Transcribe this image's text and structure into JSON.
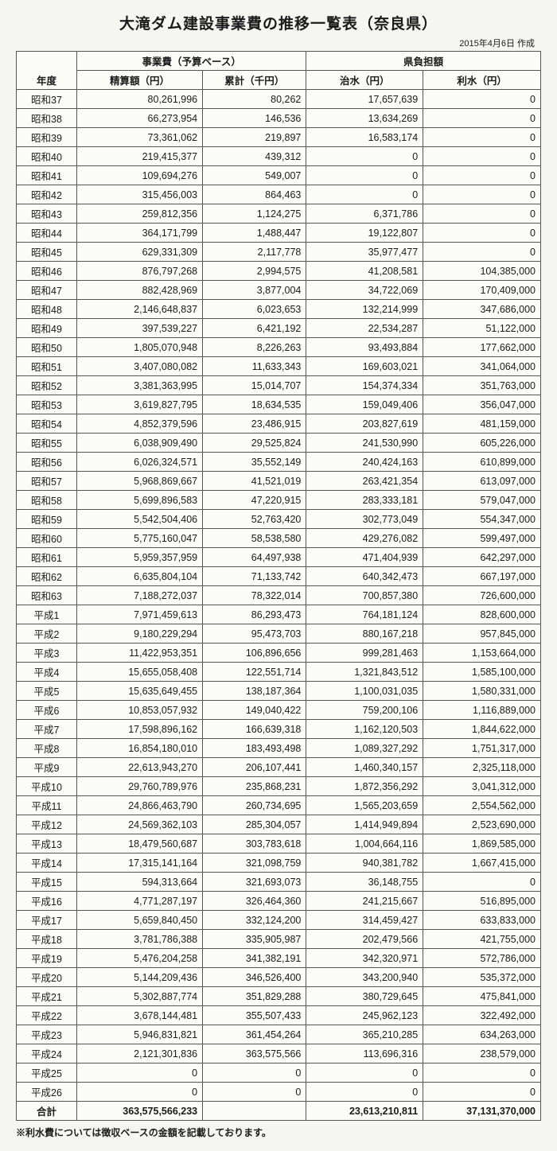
{
  "title": "大滝ダム建設事業費の推移一覧表（奈良県）",
  "date_note": "2015年4月6日 作成",
  "header": {
    "group1": "事業費（予算ベース）",
    "group2": "県負担額",
    "year": "年度",
    "col1": "精算額（円）",
    "col2": "累計（千円）",
    "col3": "治水（円）",
    "col4": "利水（円）"
  },
  "rows": [
    {
      "y": "昭和37",
      "a": "80,261,996",
      "b": "80,262",
      "c": "17,657,639",
      "d": "0"
    },
    {
      "y": "昭和38",
      "a": "66,273,954",
      "b": "146,536",
      "c": "13,634,269",
      "d": "0"
    },
    {
      "y": "昭和39",
      "a": "73,361,062",
      "b": "219,897",
      "c": "16,583,174",
      "d": "0"
    },
    {
      "y": "昭和40",
      "a": "219,415,377",
      "b": "439,312",
      "c": "0",
      "d": "0"
    },
    {
      "y": "昭和41",
      "a": "109,694,276",
      "b": "549,007",
      "c": "0",
      "d": "0"
    },
    {
      "y": "昭和42",
      "a": "315,456,003",
      "b": "864,463",
      "c": "0",
      "d": "0"
    },
    {
      "y": "昭和43",
      "a": "259,812,356",
      "b": "1,124,275",
      "c": "6,371,786",
      "d": "0"
    },
    {
      "y": "昭和44",
      "a": "364,171,799",
      "b": "1,488,447",
      "c": "19,122,807",
      "d": "0"
    },
    {
      "y": "昭和45",
      "a": "629,331,309",
      "b": "2,117,778",
      "c": "35,977,477",
      "d": "0"
    },
    {
      "y": "昭和46",
      "a": "876,797,268",
      "b": "2,994,575",
      "c": "41,208,581",
      "d": "104,385,000"
    },
    {
      "y": "昭和47",
      "a": "882,428,969",
      "b": "3,877,004",
      "c": "34,722,069",
      "d": "170,409,000"
    },
    {
      "y": "昭和48",
      "a": "2,146,648,837",
      "b": "6,023,653",
      "c": "132,214,999",
      "d": "347,686,000"
    },
    {
      "y": "昭和49",
      "a": "397,539,227",
      "b": "6,421,192",
      "c": "22,534,287",
      "d": "51,122,000"
    },
    {
      "y": "昭和50",
      "a": "1,805,070,948",
      "b": "8,226,263",
      "c": "93,493,884",
      "d": "177,662,000"
    },
    {
      "y": "昭和51",
      "a": "3,407,080,082",
      "b": "11,633,343",
      "c": "169,603,021",
      "d": "341,064,000"
    },
    {
      "y": "昭和52",
      "a": "3,381,363,995",
      "b": "15,014,707",
      "c": "154,374,334",
      "d": "351,763,000"
    },
    {
      "y": "昭和53",
      "a": "3,619,827,795",
      "b": "18,634,535",
      "c": "159,049,406",
      "d": "356,047,000"
    },
    {
      "y": "昭和54",
      "a": "4,852,379,596",
      "b": "23,486,915",
      "c": "203,827,619",
      "d": "481,159,000"
    },
    {
      "y": "昭和55",
      "a": "6,038,909,490",
      "b": "29,525,824",
      "c": "241,530,990",
      "d": "605,226,000"
    },
    {
      "y": "昭和56",
      "a": "6,026,324,571",
      "b": "35,552,149",
      "c": "240,424,163",
      "d": "610,899,000"
    },
    {
      "y": "昭和57",
      "a": "5,968,869,667",
      "b": "41,521,019",
      "c": "263,421,354",
      "d": "613,097,000"
    },
    {
      "y": "昭和58",
      "a": "5,699,896,583",
      "b": "47,220,915",
      "c": "283,333,181",
      "d": "579,047,000"
    },
    {
      "y": "昭和59",
      "a": "5,542,504,406",
      "b": "52,763,420",
      "c": "302,773,049",
      "d": "554,347,000"
    },
    {
      "y": "昭和60",
      "a": "5,775,160,047",
      "b": "58,538,580",
      "c": "429,276,082",
      "d": "599,497,000"
    },
    {
      "y": "昭和61",
      "a": "5,959,357,959",
      "b": "64,497,938",
      "c": "471,404,939",
      "d": "642,297,000"
    },
    {
      "y": "昭和62",
      "a": "6,635,804,104",
      "b": "71,133,742",
      "c": "640,342,473",
      "d": "667,197,000"
    },
    {
      "y": "昭和63",
      "a": "7,188,272,037",
      "b": "78,322,014",
      "c": "700,857,380",
      "d": "726,600,000"
    },
    {
      "y": "平成1",
      "a": "7,971,459,613",
      "b": "86,293,473",
      "c": "764,181,124",
      "d": "828,600,000"
    },
    {
      "y": "平成2",
      "a": "9,180,229,294",
      "b": "95,473,703",
      "c": "880,167,218",
      "d": "957,845,000"
    },
    {
      "y": "平成3",
      "a": "11,422,953,351",
      "b": "106,896,656",
      "c": "999,281,463",
      "d": "1,153,664,000"
    },
    {
      "y": "平成4",
      "a": "15,655,058,408",
      "b": "122,551,714",
      "c": "1,321,843,512",
      "d": "1,585,100,000"
    },
    {
      "y": "平成5",
      "a": "15,635,649,455",
      "b": "138,187,364",
      "c": "1,100,031,035",
      "d": "1,580,331,000"
    },
    {
      "y": "平成6",
      "a": "10,853,057,932",
      "b": "149,040,422",
      "c": "759,200,106",
      "d": "1,116,889,000"
    },
    {
      "y": "平成7",
      "a": "17,598,896,162",
      "b": "166,639,318",
      "c": "1,162,120,503",
      "d": "1,844,622,000"
    },
    {
      "y": "平成8",
      "a": "16,854,180,010",
      "b": "183,493,498",
      "c": "1,089,327,292",
      "d": "1,751,317,000"
    },
    {
      "y": "平成9",
      "a": "22,613,943,270",
      "b": "206,107,441",
      "c": "1,460,340,157",
      "d": "2,325,118,000"
    },
    {
      "y": "平成10",
      "a": "29,760,789,976",
      "b": "235,868,231",
      "c": "1,872,356,292",
      "d": "3,041,312,000"
    },
    {
      "y": "平成11",
      "a": "24,866,463,790",
      "b": "260,734,695",
      "c": "1,565,203,659",
      "d": "2,554,562,000"
    },
    {
      "y": "平成12",
      "a": "24,569,362,103",
      "b": "285,304,057",
      "c": "1,414,949,894",
      "d": "2,523,690,000"
    },
    {
      "y": "平成13",
      "a": "18,479,560,687",
      "b": "303,783,618",
      "c": "1,004,664,116",
      "d": "1,869,585,000"
    },
    {
      "y": "平成14",
      "a": "17,315,141,164",
      "b": "321,098,759",
      "c": "940,381,782",
      "d": "1,667,415,000"
    },
    {
      "y": "平成15",
      "a": "594,313,664",
      "b": "321,693,073",
      "c": "36,148,755",
      "d": "0"
    },
    {
      "y": "平成16",
      "a": "4,771,287,197",
      "b": "326,464,360",
      "c": "241,215,667",
      "d": "516,895,000"
    },
    {
      "y": "平成17",
      "a": "5,659,840,450",
      "b": "332,124,200",
      "c": "314,459,427",
      "d": "633,833,000"
    },
    {
      "y": "平成18",
      "a": "3,781,786,388",
      "b": "335,905,987",
      "c": "202,479,566",
      "d": "421,755,000"
    },
    {
      "y": "平成19",
      "a": "5,476,204,258",
      "b": "341,382,191",
      "c": "342,320,971",
      "d": "572,786,000"
    },
    {
      "y": "平成20",
      "a": "5,144,209,436",
      "b": "346,526,400",
      "c": "343,200,940",
      "d": "535,372,000"
    },
    {
      "y": "平成21",
      "a": "5,302,887,774",
      "b": "351,829,288",
      "c": "380,729,645",
      "d": "475,841,000"
    },
    {
      "y": "平成22",
      "a": "3,678,144,481",
      "b": "355,507,433",
      "c": "245,962,123",
      "d": "322,492,000"
    },
    {
      "y": "平成23",
      "a": "5,946,831,821",
      "b": "361,454,264",
      "c": "365,210,285",
      "d": "634,263,000"
    },
    {
      "y": "平成24",
      "a": "2,121,301,836",
      "b": "363,575,566",
      "c": "113,696,316",
      "d": "238,579,000"
    },
    {
      "y": "平成25",
      "a": "0",
      "b": "0",
      "c": "0",
      "d": "0"
    },
    {
      "y": "平成26",
      "a": "0",
      "b": "0",
      "c": "0",
      "d": "0"
    }
  ],
  "total": {
    "y": "合計",
    "a": "363,575,566,233",
    "b": "",
    "c": "23,613,210,811",
    "d": "37,131,370,000"
  },
  "footnote": "※利水費については徴収ベースの金額を記載しております。"
}
